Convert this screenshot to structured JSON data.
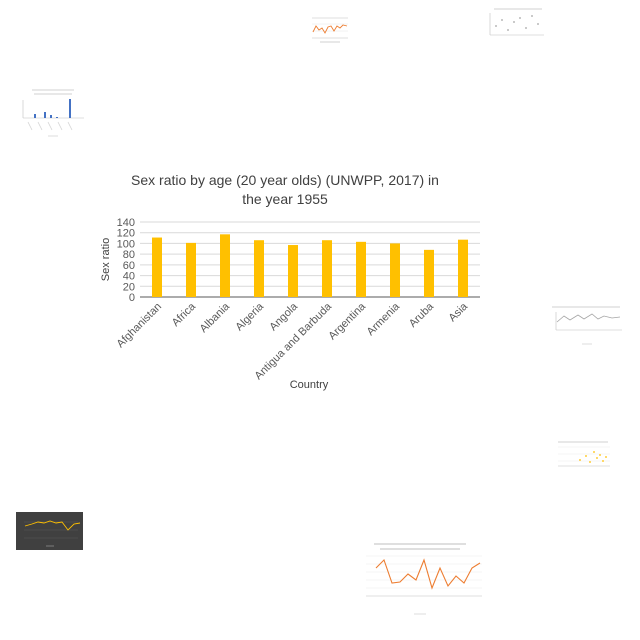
{
  "chart_data": {
    "type": "bar",
    "title": "Sex ratio by age (20 year olds) (UNWPP, 2017) in the year 1955",
    "xlabel": "Country",
    "ylabel": "Sex ratio",
    "categories": [
      "Afghanistan",
      "Africa",
      "Albania",
      "Algeria",
      "Angola",
      "Antigua and Barbuda",
      "Argentina",
      "Armenia",
      "Aruba",
      "Asia"
    ],
    "values": [
      111,
      101,
      117,
      106,
      97,
      106,
      103,
      100,
      88,
      107
    ],
    "ylim": [
      0,
      140
    ],
    "yticks": [
      "0",
      "20",
      "40",
      "60",
      "80",
      "100",
      "120",
      "140"
    ],
    "grid": true,
    "legend": "none",
    "colors": {
      "bar": "#FFC000",
      "grid": "#D9D9D9",
      "axis": "#595959",
      "text": "#595959",
      "title": "#404040"
    }
  },
  "thumbnails": {
    "top_center": {
      "type": "line",
      "color": "#ED7D31"
    },
    "top_right": {
      "type": "scatter",
      "color": "#A5A5A5"
    },
    "left_upper": {
      "type": "bar",
      "color": "#4472C4"
    },
    "right_middle": {
      "type": "line",
      "color": "#A5A5A5"
    },
    "right_lower": {
      "type": "scatter",
      "color": "#FFC000"
    },
    "left_lower": {
      "type": "line",
      "color": "#FFC000",
      "background": "#404040"
    },
    "bottom_center": {
      "type": "line",
      "color": "#ED7D31"
    }
  }
}
